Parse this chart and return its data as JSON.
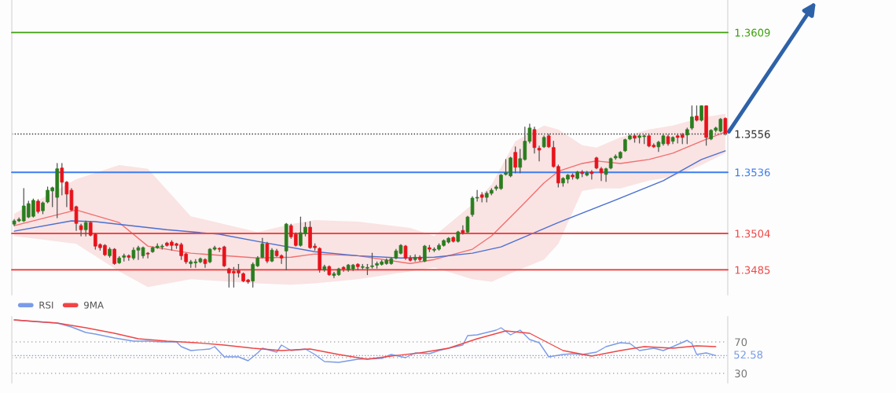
{
  "chart_data": [
    {
      "type": "candlestick",
      "categories": [
        null,
        null,
        null,
        null,
        null,
        null,
        null,
        null,
        null,
        null,
        null,
        null,
        null,
        null,
        null,
        null,
        null,
        null,
        null,
        null,
        null,
        null,
        null,
        null,
        null,
        null,
        null,
        null,
        null,
        null,
        null,
        null,
        null,
        null,
        null,
        null,
        null,
        null,
        null,
        null,
        null,
        null,
        null,
        null,
        null,
        null,
        null,
        null,
        null,
        null,
        null,
        null,
        null,
        null,
        null,
        null,
        null,
        null,
        null,
        null,
        null,
        null,
        null,
        null,
        null,
        null,
        null,
        null,
        null,
        null,
        null,
        null,
        null,
        null,
        null,
        null,
        null,
        null,
        null,
        null,
        null,
        null,
        null,
        null,
        null,
        null,
        null,
        null,
        null,
        null,
        null,
        null,
        null,
        null,
        null,
        null,
        null,
        null,
        null,
        null,
        null,
        null,
        null,
        null,
        null,
        null,
        null,
        null,
        null,
        null,
        null,
        null,
        null,
        null,
        null,
        null,
        null,
        null,
        null,
        null,
        null,
        null,
        null,
        null,
        null,
        null,
        null,
        null,
        null,
        null,
        null,
        null,
        null,
        null,
        null,
        null,
        null,
        null,
        null,
        null,
        null,
        null,
        null,
        null,
        null,
        null,
        null,
        null,
        null,
        null
      ],
      "ohlc": [
        [
          1.35089,
          1.35114,
          1.35081,
          1.35106
        ],
        [
          1.35106,
          1.35122,
          1.35102,
          1.35114
        ],
        [
          1.35106,
          1.35275,
          1.35102,
          1.35184
        ],
        [
          1.35126,
          1.35209,
          1.35122,
          1.35196
        ],
        [
          1.3513,
          1.35221,
          1.35126,
          1.35213
        ],
        [
          1.35209,
          1.35217,
          1.35147,
          1.35155
        ],
        [
          1.35159,
          1.35205,
          1.35143,
          1.352
        ],
        [
          1.35205,
          1.35283,
          1.352,
          1.35266
        ],
        [
          1.35262,
          1.35283,
          1.3518,
          1.35279
        ],
        [
          1.35229,
          1.35406,
          1.35122,
          1.35378
        ],
        [
          1.35382,
          1.35406,
          1.35242,
          1.35308
        ],
        [
          1.35308,
          1.35312,
          1.3518,
          1.35246
        ],
        [
          1.35266,
          1.35275,
          1.35159,
          1.35163
        ],
        [
          1.3518,
          1.35184,
          1.35056,
          1.35093
        ],
        [
          1.35081,
          1.35089,
          1.35027,
          1.3506
        ],
        [
          1.3506,
          1.35106,
          1.35027,
          1.35097
        ],
        [
          1.35097,
          1.35102,
          1.35027,
          1.35031
        ],
        [
          1.35036,
          1.3504,
          1.34958,
          1.34974
        ],
        [
          1.34982,
          1.34986,
          1.34953,
          1.34966
        ],
        [
          1.34978,
          1.34982,
          1.34924,
          1.34929
        ],
        [
          1.34924,
          1.34966,
          1.34916,
          1.34958
        ],
        [
          1.34958,
          1.34962,
          1.34879,
          1.34883
        ],
        [
          1.34887,
          1.3492,
          1.34883,
          1.34912
        ],
        [
          1.34916,
          1.34933,
          1.34896,
          1.34924
        ],
        [
          1.34924,
          1.34929,
          1.349,
          1.34916
        ],
        [
          1.34912,
          1.34966,
          1.34904,
          1.34953
        ],
        [
          1.34953,
          1.34974,
          1.34904,
          1.34966
        ],
        [
          1.34924,
          1.3497,
          1.34912,
          1.34966
        ],
        [
          1.34937,
          1.34941,
          1.34912,
          1.34933
        ],
        [
          1.34945,
          1.3497,
          1.34941,
          1.34966
        ],
        [
          1.34966,
          1.34986,
          1.34962,
          1.34974
        ],
        [
          1.3497,
          1.34982,
          1.34958,
          1.34974
        ],
        [
          1.3499,
          1.34995,
          1.34974,
          1.34978
        ],
        [
          1.34995,
          1.35003,
          1.34953,
          1.34978
        ],
        [
          1.34986,
          1.3499,
          1.34962,
          1.34978
        ],
        [
          1.34982,
          1.3499,
          1.34904,
          1.34924
        ],
        [
          1.34933,
          1.34937,
          1.34883,
          1.34892
        ],
        [
          1.34883,
          1.349,
          1.34863,
          1.34892
        ],
        [
          1.34887,
          1.34904,
          1.34863,
          1.34892
        ],
        [
          1.34892,
          1.34912,
          1.34887,
          1.34908
        ],
        [
          1.34904,
          1.34908,
          1.34863,
          1.34883
        ],
        [
          1.34892,
          1.34962,
          1.34887,
          1.34958
        ],
        [
          1.34958,
          1.34974,
          1.34953,
          1.34966
        ],
        [
          1.34962,
          1.34966,
          1.34945,
          1.34958
        ],
        [
          1.3497,
          1.34974,
          1.34867,
          1.34871
        ],
        [
          1.34855,
          1.34859,
          1.3476,
          1.34834
        ],
        [
          1.34842,
          1.34863,
          1.3476,
          1.34834
        ],
        [
          1.34846,
          1.34879,
          1.34813,
          1.34834
        ],
        [
          1.3483,
          1.34834,
          1.34788,
          1.34792
        ],
        [
          1.34797,
          1.34801,
          1.3478,
          1.34788
        ],
        [
          1.34792,
          1.34887,
          1.3476,
          1.34879
        ],
        [
          1.34871,
          1.3492,
          1.34867,
          1.34912
        ],
        [
          1.34916,
          1.35015,
          1.34912,
          1.34986
        ],
        [
          1.34986,
          1.34995,
          1.34887,
          1.34896
        ],
        [
          1.34896,
          1.34962,
          1.34892,
          1.34953
        ],
        [
          1.34949,
          1.34958,
          1.3492,
          1.34924
        ],
        [
          1.34924,
          1.34929,
          1.34883,
          1.34912
        ],
        [
          1.34949,
          1.35093,
          1.3485,
          1.35089
        ],
        [
          1.35081,
          1.35089,
          1.35015,
          1.35023
        ],
        [
          1.35036,
          1.35044,
          1.34974,
          1.34978
        ],
        [
          1.34978,
          1.35126,
          1.34974,
          1.35044
        ],
        [
          1.3504,
          1.35097,
          1.35027,
          1.35073
        ],
        [
          1.35073,
          1.35102,
          1.34962,
          1.34966
        ],
        [
          1.34974,
          1.34986,
          1.34953,
          1.34966
        ],
        [
          1.34962,
          1.34966,
          1.34838,
          1.3485
        ],
        [
          1.3485,
          1.34875,
          1.34842,
          1.34867
        ],
        [
          1.34867,
          1.34871,
          1.34821,
          1.34825
        ],
        [
          1.34821,
          1.34838,
          1.34809,
          1.3483
        ],
        [
          1.34825,
          1.34859,
          1.34821,
          1.34855
        ],
        [
          1.34863,
          1.34867,
          1.34842,
          1.34855
        ],
        [
          1.3485,
          1.34879,
          1.34842,
          1.34875
        ],
        [
          1.34855,
          1.34879,
          1.34846,
          1.34875
        ],
        [
          1.34879,
          1.34883,
          1.3485,
          1.34867
        ],
        [
          1.34863,
          1.34879,
          1.34855,
          1.34867
        ],
        [
          1.34859,
          1.34879,
          1.34825,
          1.34863
        ],
        [
          1.34867,
          1.34937,
          1.34859,
          1.34871
        ],
        [
          1.34875,
          1.34892,
          1.34859,
          1.34883
        ],
        [
          1.34879,
          1.349,
          1.34875,
          1.34892
        ],
        [
          1.34883,
          1.34908,
          1.34879,
          1.349
        ],
        [
          1.34883,
          1.34912,
          1.34879,
          1.34908
        ],
        [
          1.34912,
          1.34958,
          1.34908,
          1.34949
        ],
        [
          1.34937,
          1.34982,
          1.34933,
          1.34978
        ],
        [
          1.34974,
          1.34978,
          1.34904,
          1.34912
        ],
        [
          1.34912,
          1.34924,
          1.34896,
          1.349
        ],
        [
          1.34904,
          1.34929,
          1.34896,
          1.34916
        ],
        [
          1.34916,
          1.34924,
          1.34896,
          1.34904
        ],
        [
          1.34896,
          1.34978,
          1.34892,
          1.34974
        ],
        [
          1.34966,
          1.34978,
          1.34945,
          1.34958
        ],
        [
          1.34953,
          1.34966,
          1.34945,
          1.34958
        ],
        [
          1.34958,
          1.34986,
          1.34953,
          1.34978
        ],
        [
          1.34978,
          1.35007,
          1.34974,
          1.35003
        ],
        [
          1.34995,
          1.35019,
          1.3499,
          1.35015
        ],
        [
          1.35019,
          1.35023,
          1.34995,
          1.34999
        ],
        [
          1.34999,
          1.35052,
          1.34995,
          1.35048
        ],
        [
          1.35056,
          1.35081,
          1.35036,
          1.35044
        ],
        [
          1.35048,
          1.3513,
          1.35044,
          1.35126
        ],
        [
          1.35139,
          1.35233,
          1.3513,
          1.35225
        ],
        [
          1.35225,
          1.35266,
          1.35209,
          1.35229
        ],
        [
          1.35242,
          1.35254,
          1.35205,
          1.35229
        ],
        [
          1.35229,
          1.35258,
          1.35205,
          1.3525
        ],
        [
          1.3525,
          1.35275,
          1.35242,
          1.35266
        ],
        [
          1.35275,
          1.35291,
          1.35266,
          1.35283
        ],
        [
          1.35275,
          1.35349,
          1.3527,
          1.35345
        ],
        [
          1.35349,
          1.35427,
          1.35345,
          1.35357
        ],
        [
          1.35341,
          1.35439,
          1.35336,
          1.35435
        ],
        [
          1.35464,
          1.35493,
          1.35357,
          1.35386
        ],
        [
          1.35386,
          1.3548,
          1.35357,
          1.35431
        ],
        [
          1.35427,
          1.35596,
          1.35423,
          1.35522
        ],
        [
          1.35522,
          1.35612,
          1.35513,
          1.35591
        ],
        [
          1.35583,
          1.35596,
          1.3546,
          1.35489
        ],
        [
          1.35485,
          1.35497,
          1.35419,
          1.35476
        ],
        [
          1.35493,
          1.3555,
          1.35489,
          1.35542
        ],
        [
          1.3555,
          1.35559,
          1.35489,
          1.35493
        ],
        [
          1.35489,
          1.35522,
          1.35386,
          1.3539
        ],
        [
          1.3539,
          1.35398,
          1.35283,
          1.35304
        ],
        [
          1.35304,
          1.35332,
          1.35287,
          1.35328
        ],
        [
          1.35324,
          1.35349,
          1.35304,
          1.35345
        ],
        [
          1.35345,
          1.35353,
          1.35324,
          1.35336
        ],
        [
          1.35328,
          1.35365,
          1.35324,
          1.35361
        ],
        [
          1.35361,
          1.35369,
          1.35336,
          1.35353
        ],
        [
          1.35345,
          1.35365,
          1.35341,
          1.35357
        ],
        [
          1.35361,
          1.35369,
          1.35324,
          1.35353
        ],
        [
          1.35435,
          1.35439,
          1.35378,
          1.35382
        ],
        [
          1.35378,
          1.35386,
          1.35316,
          1.35357
        ],
        [
          1.35349,
          1.35382,
          1.35312,
          1.35378
        ],
        [
          1.35382,
          1.35435,
          1.35378,
          1.35431
        ],
        [
          1.35435,
          1.35452,
          1.35427,
          1.35443
        ],
        [
          1.35435,
          1.35468,
          1.35431,
          1.35464
        ],
        [
          1.35472,
          1.35534,
          1.35468,
          1.3553
        ],
        [
          1.35534,
          1.35555,
          1.3553,
          1.3555
        ],
        [
          1.3555,
          1.35555,
          1.35517,
          1.35538
        ],
        [
          1.35542,
          1.35555,
          1.35513,
          1.3555
        ],
        [
          1.35546,
          1.35555,
          1.35509,
          1.3555
        ],
        [
          1.3555,
          1.35555,
          1.35493,
          1.35497
        ],
        [
          1.35501,
          1.35509,
          1.35489,
          1.35493
        ],
        [
          1.35493,
          1.35522,
          1.35468,
          1.35517
        ],
        [
          1.35509,
          1.35555,
          1.35501,
          1.3555
        ],
        [
          1.35546,
          1.35555,
          1.35501,
          1.35509
        ],
        [
          1.35522,
          1.35546,
          1.35509,
          1.35542
        ],
        [
          1.3555,
          1.35555,
          1.35513,
          1.35542
        ],
        [
          1.35555,
          1.35563,
          1.35509,
          1.35542
        ],
        [
          1.35555,
          1.35591,
          1.35509,
          1.35583
        ],
        [
          1.35591,
          1.35707,
          1.35583,
          1.35649
        ],
        [
          1.35653,
          1.35707,
          1.35628,
          1.35632
        ],
        [
          1.35632,
          1.35707,
          1.35628,
          1.35707
        ],
        [
          1.35707,
          1.35707,
          1.35501,
          1.35542
        ],
        [
          1.35534,
          1.35583,
          1.3553,
          1.35579
        ],
        [
          1.35579,
          1.35596,
          1.35571,
          1.35591
        ],
        [
          1.35575,
          1.35641,
          1.35571,
          1.35637
        ],
        [
          1.35641,
          1.35645,
          1.35555,
          1.35563
        ]
      ],
      "series": [
        {
          "type": "line",
          "color": "#f07070",
          "values": [
            1.35081,
            null,
            null,
            null,
            null,
            null,
            null,
            null,
            null,
            null,
            null,
            null,
            null,
            1.35163,
            null,
            null,
            null,
            null,
            null,
            null,
            null,
            null,
            1.35097,
            null,
            null,
            null,
            null,
            null,
            1.34974,
            null,
            null,
            null,
            null,
            null,
            null,
            null,
            null,
            1.34937,
            null,
            null,
            null,
            null,
            null,
            null,
            null,
            null,
            null,
            null,
            null,
            null,
            null,
            1.34912,
            null,
            null,
            null,
            null,
            null,
            null,
            1.34916,
            null,
            null,
            null,
            null,
            1.34933,
            null,
            null,
            null,
            null,
            null,
            null,
            null,
            null,
            1.34924,
            null,
            null,
            null,
            null,
            null,
            null,
            null,
            null,
            null,
            null,
            1.34883,
            null,
            null,
            null,
            null,
            1.34904,
            null,
            null,
            null,
            null,
            null,
            null,
            null,
            1.34958,
            null,
            null,
            null,
            1.35027,
            null,
            null,
            null,
            null,
            1.35151,
            null,
            null,
            null,
            null,
            null,
            1.35304,
            null,
            null,
            1.35365,
            null,
            null,
            null,
            null,
            1.35406,
            null,
            null,
            1.35419,
            null,
            null,
            null,
            null,
            1.35406,
            null,
            null,
            null,
            null,
            null,
            1.35427,
            null,
            null,
            null,
            null,
            1.3546,
            null,
            null,
            null,
            null,
            null,
            1.35522,
            null,
            null,
            null,
            null,
            1.35571
          ],
          "upper": [
            1.35143,
            null,
            null,
            null,
            null,
            null,
            null,
            null,
            null,
            null,
            null,
            null,
            null,
            1.35324,
            null,
            null,
            null,
            null,
            null,
            null,
            null,
            null,
            1.35398,
            null,
            null,
            null,
            null,
            null,
            1.35378,
            null,
            null,
            null,
            null,
            null,
            null,
            null,
            null,
            1.3513,
            null,
            null,
            null,
            null,
            null,
            null,
            null,
            null,
            null,
            null,
            null,
            null,
            null,
            1.35048,
            null,
            null,
            null,
            null,
            null,
            null,
            1.35089,
            null,
            null,
            null,
            null,
            1.3511,
            null,
            null,
            null,
            null,
            null,
            null,
            null,
            null,
            1.35102,
            null,
            null,
            null,
            null,
            null,
            null,
            null,
            null,
            null,
            null,
            1.35069,
            null,
            null,
            null,
            null,
            1.35027,
            null,
            null,
            null,
            null,
            null,
            null,
            null,
            1.35192,
            null,
            null,
            null,
            1.35295,
            null,
            null,
            null,
            null,
            1.35522,
            null,
            null,
            null,
            null,
            null,
            1.35604,
            null,
            null,
            1.35583,
            null,
            null,
            null,
            null,
            1.35501,
            null,
            null,
            1.35489,
            null,
            null,
            null,
            null,
            1.35542,
            null,
            null,
            null,
            null,
            null,
            1.35583,
            null,
            null,
            null,
            null,
            1.35604,
            null,
            null,
            null,
            null,
            null,
            1.35645,
            null,
            null,
            null,
            null,
            1.35666
          ],
          "lower": [
            1.35027,
            null,
            null,
            null,
            null,
            null,
            null,
            null,
            null,
            null,
            null,
            null,
            null,
            1.34986,
            null,
            null,
            null,
            null,
            null,
            null,
            null,
            null,
            1.34842,
            null,
            null,
            null,
            null,
            null,
            1.3476,
            null,
            null,
            null,
            null,
            null,
            null,
            null,
            null,
            1.34801,
            null,
            null,
            null,
            null,
            null,
            null,
            null,
            null,
            null,
            null,
            null,
            null,
            null,
            1.3478,
            null,
            null,
            null,
            null,
            null,
            null,
            1.34772,
            null,
            null,
            null,
            null,
            1.3478,
            null,
            null,
            null,
            null,
            null,
            null,
            null,
            null,
            1.34801,
            null,
            null,
            null,
            null,
            null,
            null,
            null,
            null,
            null,
            null,
            1.34842,
            null,
            null,
            null,
            null,
            1.34863,
            null,
            null,
            null,
            null,
            null,
            null,
            null,
            1.34801,
            null,
            null,
            null,
            1.34788,
            null,
            null,
            null,
            null,
            1.34842,
            null,
            null,
            null,
            null,
            null,
            1.34904,
            null,
            null,
            1.34986,
            null,
            null,
            null,
            null,
            1.35262,
            null,
            null,
            1.35275,
            null,
            null,
            null,
            null,
            1.35275,
            null,
            null,
            null,
            null,
            null,
            1.35316,
            null,
            null,
            null,
            null,
            1.35336,
            null,
            null,
            null,
            null,
            null,
            1.35398,
            null,
            null,
            null,
            null,
            1.3546
          ]
        },
        {
          "type": "line",
          "color": "#4a6fd0",
          "values": [
            1.35052,
            null,
            null,
            null,
            null,
            null,
            null,
            null,
            null,
            null,
            null,
            null,
            1.35106,
            null,
            null,
            null,
            null,
            1.35102,
            null,
            null,
            null,
            null,
            null,
            null,
            null,
            null,
            null,
            null,
            null,
            null,
            null,
            null,
            1.3506,
            null,
            null,
            null,
            null,
            null,
            null,
            null,
            null,
            null,
            null,
            1.35036,
            null,
            null,
            null,
            null,
            null,
            null,
            null,
            1.34999,
            null,
            null,
            null,
            null,
            null,
            null,
            null,
            null,
            null,
            null,
            null,
            1.34945,
            null,
            null,
            null,
            null,
            null,
            null,
            null,
            null,
            1.34924,
            null,
            null,
            null,
            null,
            null,
            null,
            null,
            null,
            1.34912,
            null,
            null,
            null,
            null,
            null,
            null,
            1.34916,
            null,
            null,
            null,
            null,
            null,
            null,
            null,
            1.34937,
            null,
            null,
            null,
            null,
            null,
            1.3497,
            null,
            null,
            null,
            null,
            null,
            null,
            null,
            null,
            null,
            null,
            null,
            1.35097,
            null,
            null,
            null,
            null,
            null,
            null,
            null,
            null,
            null,
            null,
            1.35205,
            null,
            null,
            null,
            null,
            null,
            null,
            null,
            null,
            null,
            null,
            1.35316,
            null,
            null,
            null,
            null,
            null,
            null,
            null,
            1.35427,
            null,
            null,
            null,
            null,
            1.35472
          ]
        }
      ],
      "ylim": [
        1.3472,
        1.3626
      ],
      "yticks": [
        1.3485,
        1.3504,
        1.3536,
        1.3556,
        1.3609
      ],
      "tick_labels": "y",
      "ref_lines": [
        {
          "axis": "y",
          "value": 1.3609,
          "color": "#3fa010",
          "line_style": "solid"
        },
        {
          "axis": "y",
          "value": 1.3556,
          "color": "#333333",
          "line_style": "dotted"
        },
        {
          "axis": "y",
          "value": 1.3536,
          "color": "#3d7ef0",
          "line_style": "solid"
        },
        {
          "axis": "y",
          "value": 1.3504,
          "color": "#f04848",
          "line_style": "solid"
        },
        {
          "axis": "y",
          "value": 1.3485,
          "color": "#f04848",
          "line_style": "solid"
        }
      ]
    },
    {
      "type": "line",
      "categories": [
        null,
        null,
        null,
        null,
        null,
        null,
        null,
        null,
        null,
        null,
        null,
        null,
        null,
        null,
        null,
        null,
        null,
        null,
        null,
        null,
        null,
        null,
        null,
        null,
        null,
        null,
        null,
        null,
        null,
        null,
        null,
        null,
        null,
        null,
        null,
        null,
        null,
        null,
        null,
        null,
        null,
        null,
        null,
        null,
        null,
        null,
        null,
        null,
        null,
        null,
        null,
        null,
        null,
        null,
        null,
        null,
        null,
        null,
        null,
        null,
        null,
        null,
        null,
        null,
        null,
        null,
        null,
        null,
        null,
        null,
        null,
        null,
        null,
        null,
        null,
        null,
        null,
        null,
        null,
        null,
        null,
        null,
        null,
        null,
        null,
        null,
        null,
        null,
        null,
        null,
        null,
        null,
        null,
        null,
        null,
        null,
        null,
        null,
        null,
        null,
        null,
        null,
        null,
        null,
        null,
        null,
        null,
        null,
        null,
        null,
        null,
        null,
        null,
        null,
        null,
        null,
        null,
        null,
        null,
        null,
        null,
        null,
        null,
        null,
        null,
        null,
        null,
        null,
        null,
        null,
        null,
        null,
        null,
        null,
        null,
        null,
        null,
        null,
        null,
        null,
        null,
        null,
        null,
        null,
        null,
        null,
        null,
        null,
        null,
        null
      ],
      "series": [
        {
          "name": "RSI",
          "color": "#7b9be8",
          "values": [
            98,
            null,
            null,
            null,
            96,
            null,
            null,
            null,
            null,
            94,
            null,
            null,
            89,
            null,
            null,
            82,
            null,
            80,
            null,
            null,
            null,
            75,
            null,
            73,
            null,
            71,
            null,
            null,
            71,
            null,
            null,
            70,
            null,
            null,
            70,
            64,
            null,
            59,
            null,
            null,
            null,
            61,
            64,
            null,
            51,
            null,
            null,
            51,
            null,
            46,
            null,
            56,
            62,
            null,
            null,
            57,
            66,
            null,
            59,
            null,
            null,
            61,
            null,
            54,
            null,
            45,
            null,
            null,
            44,
            null,
            46,
            null,
            48,
            null,
            null,
            null,
            null,
            49,
            null,
            54,
            null,
            null,
            50,
            null,
            56,
            null,
            null,
            55,
            null,
            59,
            null,
            62,
            null,
            null,
            66,
            78,
            null,
            79,
            null,
            null,
            null,
            85,
            88,
            null,
            79,
            null,
            85,
            null,
            73,
            null,
            69,
            null,
            51,
            null,
            null,
            54,
            null,
            55,
            null,
            54,
            null,
            null,
            57,
            null,
            64,
            null,
            null,
            69,
            null,
            68,
            null,
            59,
            null,
            null,
            62,
            null,
            59,
            null,
            64,
            null,
            null,
            72,
            68,
            54,
            null,
            56,
            null,
            52.58,
            null,
            null
          ]
        },
        {
          "name": "9MA",
          "color": "#f04545",
          "values": [
            98,
            null,
            null,
            null,
            null,
            null,
            null,
            null,
            null,
            94,
            null,
            null,
            null,
            null,
            null,
            88,
            null,
            null,
            null,
            null,
            null,
            81,
            null,
            null,
            null,
            null,
            74,
            null,
            null,
            null,
            null,
            null,
            71,
            null,
            null,
            null,
            null,
            null,
            69,
            null,
            null,
            null,
            null,
            null,
            66,
            null,
            null,
            null,
            null,
            null,
            62,
            null,
            null,
            null,
            null,
            null,
            59,
            null,
            null,
            null,
            null,
            null,
            61,
            null,
            null,
            null,
            null,
            null,
            54,
            null,
            null,
            null,
            null,
            null,
            48,
            null,
            null,
            null,
            null,
            52,
            null,
            null,
            null,
            null,
            null,
            56,
            null,
            null,
            null,
            null,
            null,
            62,
            null,
            null,
            null,
            null,
            null,
            74,
            null,
            null,
            null,
            null,
            null,
            84,
            null,
            null,
            null,
            null,
            81,
            null,
            null,
            null,
            null,
            null,
            null,
            59,
            null,
            null,
            null,
            null,
            null,
            52,
            null,
            null,
            null,
            null,
            null,
            59,
            null,
            null,
            null,
            null,
            64,
            null,
            null,
            null,
            null,
            null,
            62,
            null,
            null,
            null,
            null,
            65,
            null,
            null,
            null,
            64,
            null,
            null
          ]
        }
      ],
      "ylim": [
        18,
        102
      ],
      "yticks": [
        70,
        {
          "value": 50,
          "label": null
        },
        30
      ],
      "grid": "y",
      "legend": "top left",
      "tick_labels": "y",
      "ref_lines": [
        {
          "axis": "y",
          "value": 52.58,
          "label": "52.58",
          "color": "#7b9be8",
          "line_style": "dotted"
        }
      ]
    }
  ]
}
